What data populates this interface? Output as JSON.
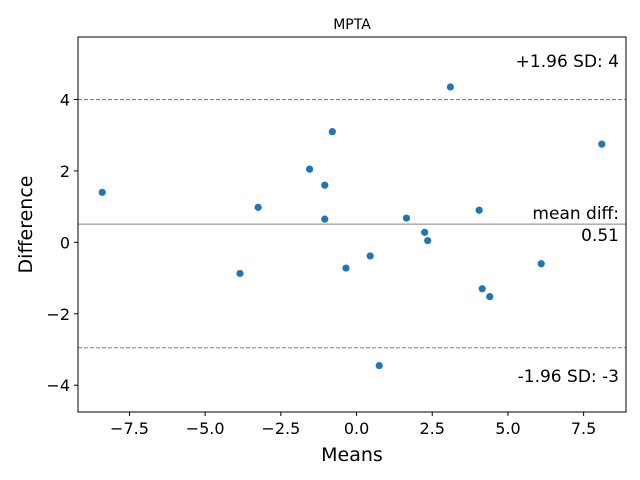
{
  "chart_data": {
    "type": "scatter",
    "title": "MPTA",
    "xlabel": "Means",
    "ylabel": "Difference",
    "xlim": [
      -9.2,
      8.9
    ],
    "ylim": [
      -4.75,
      5.75
    ],
    "xticks": [
      -7.5,
      -5.0,
      -2.5,
      0.0,
      2.5,
      5.0,
      7.5
    ],
    "xtick_labels": [
      "−7.5",
      "−5.0",
      "−2.5",
      "0.0",
      "2.5",
      "5.0",
      "7.5"
    ],
    "yticks": [
      -4,
      -2,
      0,
      2,
      4
    ],
    "ytick_labels": [
      "−4",
      "−2",
      "0",
      "2",
      "4"
    ],
    "grid": false,
    "point_color": "#1f77b4",
    "points": [
      {
        "x": -8.4,
        "y": 1.4
      },
      {
        "x": -3.85,
        "y": -0.87
      },
      {
        "x": -3.25,
        "y": 0.98
      },
      {
        "x": -1.55,
        "y": 2.05
      },
      {
        "x": -1.05,
        "y": 1.6
      },
      {
        "x": -1.05,
        "y": 0.65
      },
      {
        "x": -0.8,
        "y": 3.1
      },
      {
        "x": -0.35,
        "y": -0.72
      },
      {
        "x": 0.45,
        "y": -0.38
      },
      {
        "x": 0.75,
        "y": -3.45
      },
      {
        "x": 1.65,
        "y": 0.68
      },
      {
        "x": 2.25,
        "y": 0.28
      },
      {
        "x": 2.35,
        "y": 0.05
      },
      {
        "x": 3.1,
        "y": 4.35
      },
      {
        "x": 4.05,
        "y": 0.9
      },
      {
        "x": 4.15,
        "y": -1.3
      },
      {
        "x": 4.4,
        "y": -1.52
      },
      {
        "x": 6.1,
        "y": -0.6
      },
      {
        "x": 8.1,
        "y": 2.75
      }
    ],
    "lines": [
      {
        "name": "mean",
        "y": 0.51,
        "color": "#808080",
        "style": "solid"
      },
      {
        "name": "upper",
        "y": 4.0,
        "color": "#808080",
        "style": "dashed"
      },
      {
        "name": "lower",
        "y": -2.95,
        "color": "#808080",
        "style": "dashed"
      }
    ],
    "annotations": {
      "upper": "+1.96 SD: 4",
      "mean_line1": "mean diff:",
      "mean_line2": "0.51",
      "lower": "-1.96 SD: -3"
    }
  }
}
